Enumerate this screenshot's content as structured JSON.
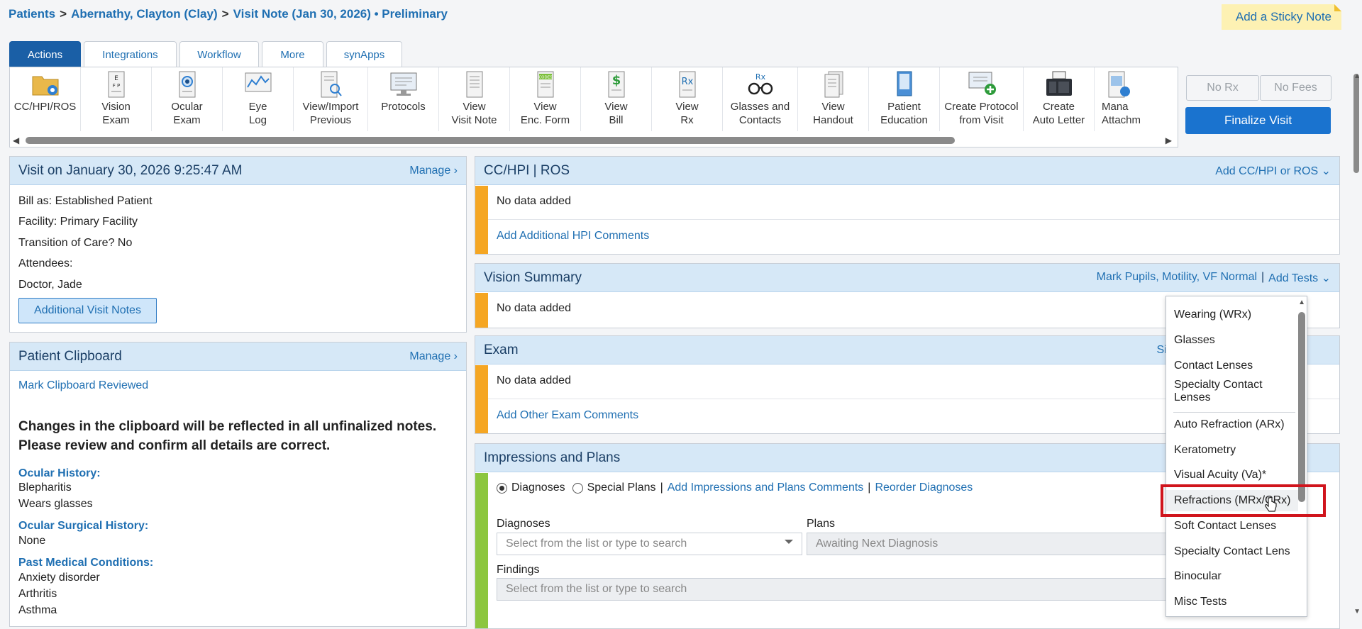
{
  "breadcrumb": {
    "patients": "Patients",
    "sep1": ">",
    "patient": "Abernathy, Clayton (Clay)",
    "sep2": ">",
    "visit": "Visit Note (Jan 30, 2026) • Preliminary"
  },
  "sticky_note": "Add a Sticky Note",
  "tabs": [
    {
      "label": "Actions"
    },
    {
      "label": "Integrations"
    },
    {
      "label": "Workflow"
    },
    {
      "label": "More"
    },
    {
      "label": "synApps"
    }
  ],
  "toolbar": [
    {
      "label": "CC/HPI/ROS",
      "icon": "folder-icon"
    },
    {
      "label": "Vision\nExam",
      "icon": "eye-chart-icon"
    },
    {
      "label": "Ocular\nExam",
      "icon": "ocular-exam-icon"
    },
    {
      "label": "Eye\nLog",
      "icon": "chart-log-icon"
    },
    {
      "label": "View/Import\nPrevious",
      "icon": "document-search-icon"
    },
    {
      "label": "Protocols",
      "icon": "monitor-icon"
    },
    {
      "label": "View\nVisit Note",
      "icon": "document-icon"
    },
    {
      "label": "View\nEnc. Form",
      "icon": "codes-document-icon"
    },
    {
      "label": "View\nBill",
      "icon": "dollar-document-icon"
    },
    {
      "label": "View\nRx",
      "icon": "rx-document-icon"
    },
    {
      "label": "Glasses and\nContacts",
      "icon": "glasses-icon"
    },
    {
      "label": "View\nHandout",
      "icon": "handout-icon"
    },
    {
      "label": "Patient\nEducation",
      "icon": "book-icon"
    },
    {
      "label": "Create Protocol\nfrom Visit",
      "icon": "add-protocol-icon"
    },
    {
      "label": "Create\nAuto Letter",
      "icon": "fax-icon"
    },
    {
      "label": "Mana\nAttachm",
      "icon": "attachment-icon"
    }
  ],
  "right_buttons": {
    "no_rx": "No Rx",
    "no_fees": "No Fees",
    "finalize": "Finalize Visit"
  },
  "visit_panel": {
    "title": "Visit on January 30, 2026 9:25:47 AM",
    "manage": "Manage ›",
    "bill_as": "Bill as: Established Patient",
    "facility": "Facility: Primary Facility",
    "transition": "Transition of Care? No",
    "attendees": "Attendees:",
    "doctor": "Doctor, Jade",
    "additional_notes": "Additional Visit Notes"
  },
  "clipboard_panel": {
    "title": "Patient Clipboard",
    "manage": "Manage ›",
    "mark_reviewed": "Mark Clipboard Reviewed",
    "notice_line1": "Changes in the clipboard will be reflected in all unfinalized notes.",
    "notice_line2": "Please review and confirm all details are correct.",
    "ocular_history_label": "Ocular History:",
    "ocular_history": [
      "Blepharitis",
      "Wears glasses"
    ],
    "ocular_surgical_label": "Ocular Surgical History:",
    "ocular_surgical": [
      "None"
    ],
    "pmc_label": "Past Medical Conditions:",
    "pmc": [
      "Anxiety disorder",
      "Arthritis",
      "Asthma"
    ]
  },
  "cchpi_panel": {
    "title": "CC/HPI | ROS",
    "action": "Add CC/HPI or ROS ⌄",
    "no_data": "No data added",
    "add_comments": "Add Additional HPI Comments"
  },
  "vision_panel": {
    "title": "Vision Summary",
    "action_left": "Mark Pupils, Motility, VF Normal",
    "divider": "|",
    "action_right": "Add Tests ⌄",
    "no_data": "No data added"
  },
  "exam_panel": {
    "title": "Exam",
    "action": "Sim",
    "no_data": "No data added",
    "add_comments": "Add Other Exam Comments"
  },
  "ip_panel": {
    "title": "Impressions and Plans",
    "radio_diagnoses": "Diagnoses",
    "radio_special": "Special Plans",
    "sep": "|",
    "add_comments": "Add Impressions and Plans Comments",
    "reorder": "Reorder Diagnoses",
    "diagnoses_label": "Diagnoses",
    "diagnoses_placeholder": "Select from the list or type to search",
    "plans_label": "Plans",
    "plans_placeholder": "Awaiting Next Diagnosis",
    "findings_label": "Findings",
    "findings_placeholder": "Select from the list or type to search"
  },
  "tests_dropdown": {
    "group1": [
      "Wearing (WRx)",
      "Glasses",
      "Contact Lenses",
      "Specialty Contact Lenses"
    ],
    "group2": [
      "Auto Refraction (ARx)",
      "Keratometry",
      "Visual Acuity (Va)*",
      "Refractions (MRx/CRx)",
      "Soft Contact Lenses",
      "Specialty Contact Lens",
      "Binocular",
      "Misc Tests"
    ],
    "highlighted": "Refractions (MRx/CRx)"
  },
  "colors": {
    "accent": "#1f6fb2",
    "header_bg": "#d6e8f7",
    "stripe_orange": "#f5a623",
    "stripe_green": "#8cc63f",
    "highlight_red": "#d0141c"
  }
}
